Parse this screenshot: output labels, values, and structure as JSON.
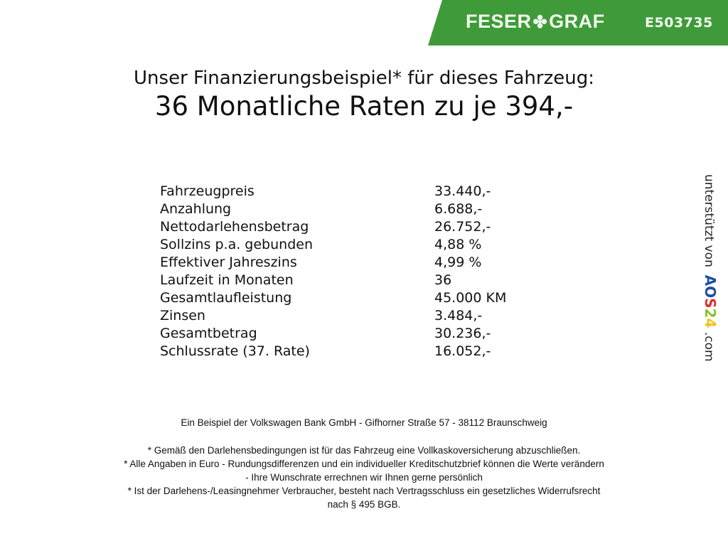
{
  "header": {
    "brand_left": "FESER",
    "brand_right": "GRAF",
    "vehicle_code": "E503735",
    "brand_color": "#3f9b3a"
  },
  "title": {
    "line1": "Unser Finanzierungsbeispiel* für dieses Fahrzeug:",
    "line2": "36 Monatliche Raten zu je 394,-"
  },
  "rows": [
    {
      "label": "Fahrzeugpreis",
      "value": "33.440,-"
    },
    {
      "label": "Anzahlung",
      "value": "6.688,-"
    },
    {
      "label": "Nettodarlehensbetrag",
      "value": "26.752,-"
    },
    {
      "label": "Sollzins p.a. gebunden",
      "value": "4,88 %"
    },
    {
      "label": "Effektiver Jahreszins",
      "value": "4,99 %"
    },
    {
      "label": "Laufzeit in Monaten",
      "value": "36"
    },
    {
      "label": "Gesamtlaufleistung",
      "value": "45.000 KM"
    },
    {
      "label": "Zinsen",
      "value": "3.484,-"
    },
    {
      "label": "Gesamtbetrag",
      "value": "30.236,-"
    },
    {
      "label": "Schlussrate (37. Rate)",
      "value": "16.052,-"
    }
  ],
  "side": {
    "prefix": "unterstützt von",
    "logo": "AOS24",
    "suffix": ".com"
  },
  "footer": {
    "bank": "Ein Beispiel der Volkswagen Bank GmbH - Gifhorner Straße 57 - 38112 Braunschweig",
    "notes": [
      "* Gemäß den Darlehensbedingungen ist für das Fahrzeug eine Vollkaskoversicherung abzuschließen.",
      "* Alle Angaben in Euro - Rundungsdifferenzen und ein individueller Kreditschutzbrief können die Werte verändern",
      "- Ihre Wunschrate errechnen wir Ihnen gerne persönlich",
      "* Ist der Darlehens-/Leasingnehmer Verbraucher, besteht nach Vertragsschluss ein gesetzliches Widerrufsrecht",
      "nach § 495 BGB."
    ]
  }
}
